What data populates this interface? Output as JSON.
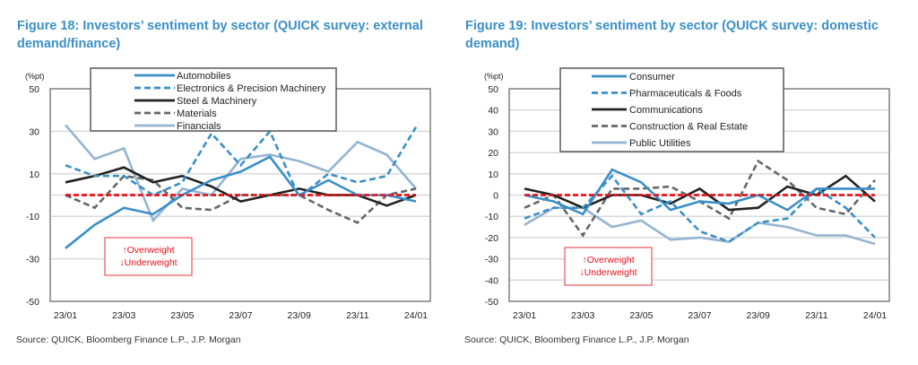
{
  "figures": [
    {
      "title": "Figure 18: Investors’ sentiment by sector (QUICK survey: external demand/finance)",
      "source": "Source: QUICK, Bloomberg Finance L.P., J.P. Morgan",
      "annotation": {
        "up": "↑Overweight",
        "down": "↓Underweight"
      }
    },
    {
      "title": "Figure 19: Investors’ sentiment by sector (QUICK survey: domestic demand)",
      "source": "Source: QUICK, Bloomberg Finance L.P., J.P. Morgan",
      "annotation": {
        "up": "↑Overweight",
        "down": "↓Underweight"
      }
    }
  ],
  "chart_data": [
    {
      "type": "line",
      "title": "Figure 18: Investors’ sentiment by sector (QUICK survey: external demand/finance)",
      "ylabel": "(%pt)",
      "xlabel": "",
      "ylim": [
        -50,
        50
      ],
      "yticks": [
        50,
        30,
        10,
        -10,
        -30,
        -50
      ],
      "x": [
        "23/01",
        "23/02",
        "23/03",
        "23/04",
        "23/05",
        "23/06",
        "23/07",
        "23/08",
        "23/09",
        "23/10",
        "23/11",
        "23/12",
        "24/01"
      ],
      "xtick_labels": [
        "23/01",
        "23/03",
        "23/05",
        "23/07",
        "23/09",
        "23/11",
        "24/01"
      ],
      "grid": true,
      "legend_position": "top",
      "reference_line": {
        "value": 0,
        "color": "#e8101a",
        "style": "dashed"
      },
      "series": [
        {
          "name": "Automobiles",
          "color": "#3a8fc7",
          "style": "solid",
          "values": [
            -25,
            -14,
            -6,
            -9,
            0,
            7,
            11,
            18,
            0,
            7,
            0,
            0,
            -3
          ]
        },
        {
          "name": "Electronics & Precision Machinery",
          "color": "#3a8fc7",
          "style": "dashed",
          "values": [
            14,
            9,
            9,
            0,
            6,
            29,
            14,
            30,
            -1,
            10,
            6,
            9,
            32
          ]
        },
        {
          "name": "Steel & Machinery",
          "color": "#222222",
          "style": "solid",
          "values": [
            6,
            9,
            13,
            6,
            9,
            4,
            -3,
            0,
            3,
            0,
            0,
            -5,
            0
          ]
        },
        {
          "name": "Materials",
          "color": "#666666",
          "style": "dashed",
          "values": [
            0,
            -6,
            9,
            7,
            -6,
            -7,
            0,
            0,
            0,
            -7,
            -13,
            0,
            3
          ]
        },
        {
          "name": "Financials",
          "color": "#94b4d2",
          "style": "solid",
          "values": [
            33,
            17,
            22,
            -12,
            3,
            0,
            17,
            19,
            16,
            11,
            25,
            19,
            3
          ]
        }
      ]
    },
    {
      "type": "line",
      "title": "Figure 19: Investors’ sentiment by sector (QUICK survey: domestic demand)",
      "ylabel": "(%pt)",
      "xlabel": "",
      "ylim": [
        -50,
        50
      ],
      "yticks": [
        50,
        40,
        30,
        20,
        10,
        0,
        -10,
        -20,
        -30,
        -40,
        -50
      ],
      "x": [
        "23/01",
        "23/02",
        "23/03",
        "23/04",
        "23/05",
        "23/06",
        "23/07",
        "23/08",
        "23/09",
        "23/10",
        "23/11",
        "23/12",
        "24/01"
      ],
      "xtick_labels": [
        "23/01",
        "23/03",
        "23/05",
        "23/07",
        "23/09",
        "23/11",
        "24/01"
      ],
      "grid": true,
      "legend_position": "top",
      "reference_line": {
        "value": 0,
        "color": "#e8101a",
        "style": "dashed"
      },
      "series": [
        {
          "name": "Consumer",
          "color": "#3a8fc7",
          "style": "solid",
          "values": [
            0,
            -3,
            -9,
            12,
            6,
            -7,
            -3,
            -4,
            0,
            -7,
            3,
            3,
            3
          ]
        },
        {
          "name": "Pharmaceuticals & Foods",
          "color": "#3a8fc7",
          "style": "dashed",
          "values": [
            -11,
            -6,
            -6,
            9,
            -9,
            -3,
            -17,
            -22,
            -13,
            -11,
            3,
            -6,
            -20
          ]
        },
        {
          "name": "Communications",
          "color": "#222222",
          "style": "solid",
          "values": [
            3,
            0,
            -6,
            0,
            0,
            -4,
            3,
            -7,
            -6,
            4,
            0,
            9,
            -3
          ]
        },
        {
          "name": "Construction & Real Estate",
          "color": "#666666",
          "style": "dashed",
          "values": [
            -6,
            0,
            -19,
            3,
            3,
            4,
            -3,
            -11,
            16,
            7,
            -6,
            -9,
            7
          ]
        },
        {
          "name": "Public Utilities",
          "color": "#94b4d2",
          "style": "solid",
          "values": [
            -14,
            -6,
            -6,
            -15,
            -12,
            -21,
            -20,
            -22,
            -13,
            -15,
            -19,
            -19,
            -23
          ]
        }
      ]
    }
  ]
}
